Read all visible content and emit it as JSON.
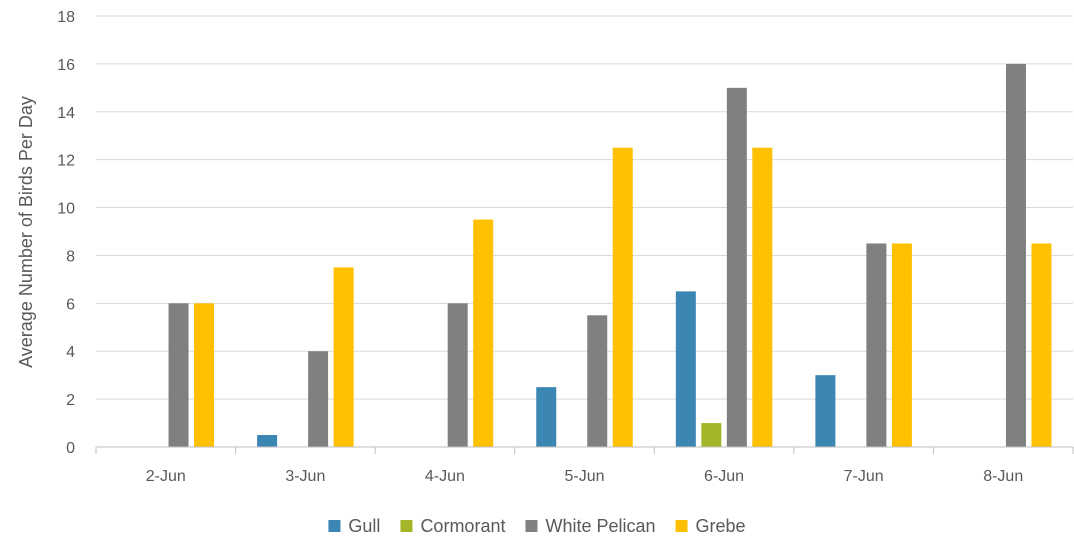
{
  "chart_data": {
    "type": "bar",
    "title": "",
    "xlabel": "",
    "ylabel": "Average Number of Birds Per Day",
    "categories": [
      "2-Jun",
      "3-Jun",
      "4-Jun",
      "5-Jun",
      "6-Jun",
      "7-Jun",
      "8-Jun"
    ],
    "series": [
      {
        "name": "Gull",
        "color": "#3c86b3",
        "values": [
          0,
          0.5,
          0,
          2.5,
          6.5,
          3,
          0
        ]
      },
      {
        "name": "Cormorant",
        "color": "#a5b52a",
        "values": [
          0,
          0,
          0,
          0,
          1,
          0,
          0
        ]
      },
      {
        "name": "White Pelican",
        "color": "#808080",
        "values": [
          6,
          4,
          6,
          5.5,
          15,
          8.5,
          16
        ]
      },
      {
        "name": "Grebe",
        "color": "#ffc000",
        "values": [
          6,
          7.5,
          9.5,
          12.5,
          12.5,
          8.5,
          8.5
        ]
      }
    ],
    "ylim": [
      0,
      18
    ],
    "yticks": [
      0,
      2,
      4,
      6,
      8,
      10,
      12,
      14,
      16,
      18
    ],
    "grid": true,
    "legend": "bottom"
  }
}
